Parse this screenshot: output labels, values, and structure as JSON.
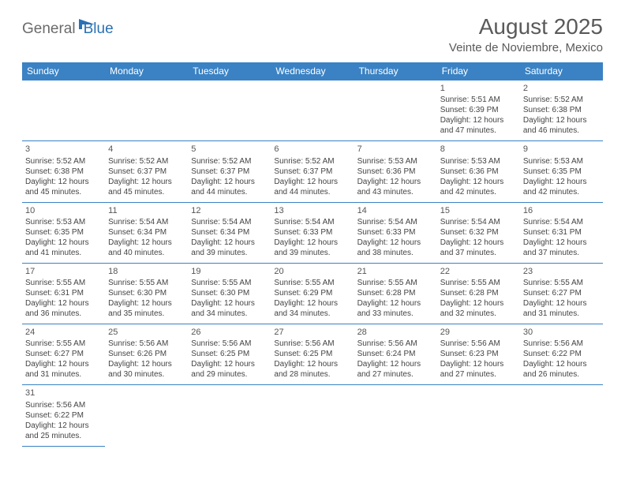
{
  "logo": {
    "text1": "General",
    "text2": "Blue"
  },
  "title": "August 2025",
  "location": "Veinte de Noviembre, Mexico",
  "colors": {
    "header_bg": "#3a82c4",
    "header_text": "#ffffff",
    "cell_border": "#3a82c4",
    "text": "#444444",
    "logo_gray": "#6b6b6b",
    "logo_blue": "#2a72b5"
  },
  "day_headers": [
    "Sunday",
    "Monday",
    "Tuesday",
    "Wednesday",
    "Thursday",
    "Friday",
    "Saturday"
  ],
  "weeks": [
    [
      null,
      null,
      null,
      null,
      null,
      {
        "n": "1",
        "sr": "5:51 AM",
        "ss": "6:39 PM",
        "dl": "12 hours and 47 minutes."
      },
      {
        "n": "2",
        "sr": "5:52 AM",
        "ss": "6:38 PM",
        "dl": "12 hours and 46 minutes."
      }
    ],
    [
      {
        "n": "3",
        "sr": "5:52 AM",
        "ss": "6:38 PM",
        "dl": "12 hours and 45 minutes."
      },
      {
        "n": "4",
        "sr": "5:52 AM",
        "ss": "6:37 PM",
        "dl": "12 hours and 45 minutes."
      },
      {
        "n": "5",
        "sr": "5:52 AM",
        "ss": "6:37 PM",
        "dl": "12 hours and 44 minutes."
      },
      {
        "n": "6",
        "sr": "5:52 AM",
        "ss": "6:37 PM",
        "dl": "12 hours and 44 minutes."
      },
      {
        "n": "7",
        "sr": "5:53 AM",
        "ss": "6:36 PM",
        "dl": "12 hours and 43 minutes."
      },
      {
        "n": "8",
        "sr": "5:53 AM",
        "ss": "6:36 PM",
        "dl": "12 hours and 42 minutes."
      },
      {
        "n": "9",
        "sr": "5:53 AM",
        "ss": "6:35 PM",
        "dl": "12 hours and 42 minutes."
      }
    ],
    [
      {
        "n": "10",
        "sr": "5:53 AM",
        "ss": "6:35 PM",
        "dl": "12 hours and 41 minutes."
      },
      {
        "n": "11",
        "sr": "5:54 AM",
        "ss": "6:34 PM",
        "dl": "12 hours and 40 minutes."
      },
      {
        "n": "12",
        "sr": "5:54 AM",
        "ss": "6:34 PM",
        "dl": "12 hours and 39 minutes."
      },
      {
        "n": "13",
        "sr": "5:54 AM",
        "ss": "6:33 PM",
        "dl": "12 hours and 39 minutes."
      },
      {
        "n": "14",
        "sr": "5:54 AM",
        "ss": "6:33 PM",
        "dl": "12 hours and 38 minutes."
      },
      {
        "n": "15",
        "sr": "5:54 AM",
        "ss": "6:32 PM",
        "dl": "12 hours and 37 minutes."
      },
      {
        "n": "16",
        "sr": "5:54 AM",
        "ss": "6:31 PM",
        "dl": "12 hours and 37 minutes."
      }
    ],
    [
      {
        "n": "17",
        "sr": "5:55 AM",
        "ss": "6:31 PM",
        "dl": "12 hours and 36 minutes."
      },
      {
        "n": "18",
        "sr": "5:55 AM",
        "ss": "6:30 PM",
        "dl": "12 hours and 35 minutes."
      },
      {
        "n": "19",
        "sr": "5:55 AM",
        "ss": "6:30 PM",
        "dl": "12 hours and 34 minutes."
      },
      {
        "n": "20",
        "sr": "5:55 AM",
        "ss": "6:29 PM",
        "dl": "12 hours and 34 minutes."
      },
      {
        "n": "21",
        "sr": "5:55 AM",
        "ss": "6:28 PM",
        "dl": "12 hours and 33 minutes."
      },
      {
        "n": "22",
        "sr": "5:55 AM",
        "ss": "6:28 PM",
        "dl": "12 hours and 32 minutes."
      },
      {
        "n": "23",
        "sr": "5:55 AM",
        "ss": "6:27 PM",
        "dl": "12 hours and 31 minutes."
      }
    ],
    [
      {
        "n": "24",
        "sr": "5:55 AM",
        "ss": "6:27 PM",
        "dl": "12 hours and 31 minutes."
      },
      {
        "n": "25",
        "sr": "5:56 AM",
        "ss": "6:26 PM",
        "dl": "12 hours and 30 minutes."
      },
      {
        "n": "26",
        "sr": "5:56 AM",
        "ss": "6:25 PM",
        "dl": "12 hours and 29 minutes."
      },
      {
        "n": "27",
        "sr": "5:56 AM",
        "ss": "6:25 PM",
        "dl": "12 hours and 28 minutes."
      },
      {
        "n": "28",
        "sr": "5:56 AM",
        "ss": "6:24 PM",
        "dl": "12 hours and 27 minutes."
      },
      {
        "n": "29",
        "sr": "5:56 AM",
        "ss": "6:23 PM",
        "dl": "12 hours and 27 minutes."
      },
      {
        "n": "30",
        "sr": "5:56 AM",
        "ss": "6:22 PM",
        "dl": "12 hours and 26 minutes."
      }
    ],
    [
      {
        "n": "31",
        "sr": "5:56 AM",
        "ss": "6:22 PM",
        "dl": "12 hours and 25 minutes."
      },
      null,
      null,
      null,
      null,
      null,
      null
    ]
  ],
  "labels": {
    "sunrise": "Sunrise:",
    "sunset": "Sunset:",
    "daylight": "Daylight:"
  }
}
